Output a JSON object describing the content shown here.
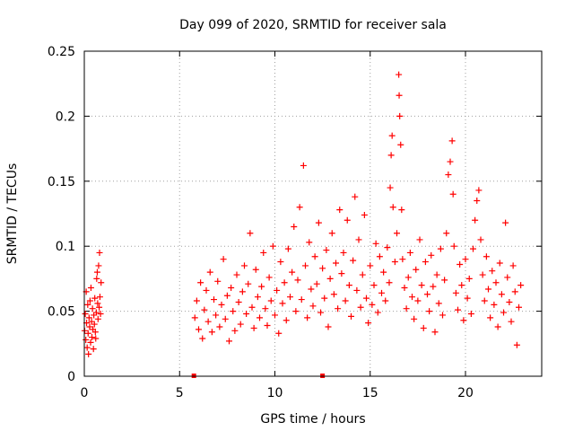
{
  "chart_data": {
    "type": "scatter",
    "title": "Day 099 of 2020, SRMTID for receiver sala",
    "xlabel": "GPS time / hours",
    "ylabel": "SRMTID / TECUs",
    "xlim": [
      0,
      24
    ],
    "ylim": [
      0,
      0.25
    ],
    "xticks": [
      0,
      5,
      10,
      15,
      20
    ],
    "xtick_labels": [
      "0",
      "5",
      "10",
      "15",
      "20"
    ],
    "yticks": [
      0,
      0.05,
      0.1,
      0.15,
      0.2,
      0.25
    ],
    "ytick_labels": [
      "0",
      "0.05",
      "0.1",
      "0.15",
      "0.2",
      "0.25"
    ],
    "grid": true,
    "marker": "plus",
    "color": "#ff0000",
    "series": [
      {
        "name": "SRMTID",
        "points": [
          [
            0.02,
            0.035
          ],
          [
            0.05,
            0.048
          ],
          [
            0.08,
            0.028
          ],
          [
            0.1,
            0.065
          ],
          [
            0.12,
            0.041
          ],
          [
            0.15,
            0.022
          ],
          [
            0.18,
            0.055
          ],
          [
            0.2,
            0.033
          ],
          [
            0.22,
            0.017
          ],
          [
            0.25,
            0.045
          ],
          [
            0.28,
            0.038
          ],
          [
            0.3,
            0.058
          ],
          [
            0.33,
            0.026
          ],
          [
            0.35,
            0.068
          ],
          [
            0.38,
            0.042
          ],
          [
            0.4,
            0.03
          ],
          [
            0.43,
            0.052
          ],
          [
            0.45,
            0.036
          ],
          [
            0.48,
            0.021
          ],
          [
            0.5,
            0.047
          ],
          [
            0.53,
            0.04
          ],
          [
            0.55,
            0.06
          ],
          [
            0.58,
            0.034
          ],
          [
            0.6,
            0.029
          ],
          [
            0.63,
            0.049
          ],
          [
            0.65,
            0.075
          ],
          [
            0.68,
            0.08
          ],
          [
            0.7,
            0.056
          ],
          [
            0.72,
            0.044
          ],
          [
            0.75,
            0.085
          ],
          [
            0.78,
            0.053
          ],
          [
            0.8,
            0.095
          ],
          [
            0.82,
            0.061
          ],
          [
            0.85,
            0.048
          ],
          [
            0.88,
            0.072
          ],
          [
            5.8,
            0.045
          ],
          [
            5.9,
            0.058
          ],
          [
            6.0,
            0.036
          ],
          [
            6.1,
            0.072
          ],
          [
            6.2,
            0.029
          ],
          [
            6.3,
            0.051
          ],
          [
            6.4,
            0.066
          ],
          [
            6.5,
            0.042
          ],
          [
            6.6,
            0.08
          ],
          [
            6.7,
            0.034
          ],
          [
            6.8,
            0.059
          ],
          [
            6.9,
            0.047
          ],
          [
            7.0,
            0.073
          ],
          [
            7.1,
            0.038
          ],
          [
            7.2,
            0.055
          ],
          [
            7.3,
            0.09
          ],
          [
            7.4,
            0.044
          ],
          [
            7.5,
            0.062
          ],
          [
            7.6,
            0.027
          ],
          [
            7.7,
            0.068
          ],
          [
            7.8,
            0.05
          ],
          [
            7.9,
            0.035
          ],
          [
            8.0,
            0.078
          ],
          [
            8.1,
            0.057
          ],
          [
            8.2,
            0.04
          ],
          [
            8.3,
            0.065
          ],
          [
            8.4,
            0.085
          ],
          [
            8.5,
            0.048
          ],
          [
            8.6,
            0.071
          ],
          [
            8.7,
            0.11
          ],
          [
            8.8,
            0.053
          ],
          [
            8.9,
            0.037
          ],
          [
            9.0,
            0.082
          ],
          [
            9.1,
            0.061
          ],
          [
            9.2,
            0.045
          ],
          [
            9.3,
            0.069
          ],
          [
            9.4,
            0.095
          ],
          [
            9.5,
            0.052
          ],
          [
            9.6,
            0.039
          ],
          [
            9.7,
            0.076
          ],
          [
            9.8,
            0.058
          ],
          [
            9.9,
            0.1
          ],
          [
            10.0,
            0.047
          ],
          [
            10.1,
            0.066
          ],
          [
            10.2,
            0.033
          ],
          [
            10.3,
            0.088
          ],
          [
            10.4,
            0.056
          ],
          [
            10.5,
            0.072
          ],
          [
            10.6,
            0.043
          ],
          [
            10.7,
            0.098
          ],
          [
            10.8,
            0.061
          ],
          [
            10.9,
            0.08
          ],
          [
            11.0,
            0.115
          ],
          [
            11.1,
            0.05
          ],
          [
            11.2,
            0.074
          ],
          [
            11.3,
            0.13
          ],
          [
            11.4,
            0.059
          ],
          [
            11.5,
            0.162
          ],
          [
            11.6,
            0.085
          ],
          [
            11.7,
            0.045
          ],
          [
            11.8,
            0.103
          ],
          [
            11.9,
            0.067
          ],
          [
            12.0,
            0.054
          ],
          [
            12.1,
            0.092
          ],
          [
            12.2,
            0.071
          ],
          [
            12.3,
            0.118
          ],
          [
            12.4,
            0.049
          ],
          [
            12.5,
            0.083
          ],
          [
            12.6,
            0.06
          ],
          [
            12.7,
            0.097
          ],
          [
            12.8,
            0.038
          ],
          [
            12.9,
            0.075
          ],
          [
            13.0,
            0.11
          ],
          [
            13.1,
            0.063
          ],
          [
            13.2,
            0.087
          ],
          [
            13.3,
            0.052
          ],
          [
            13.4,
            0.128
          ],
          [
            13.5,
            0.079
          ],
          [
            13.6,
            0.095
          ],
          [
            13.7,
            0.058
          ],
          [
            13.8,
            0.12
          ],
          [
            13.9,
            0.07
          ],
          [
            14.0,
            0.046
          ],
          [
            14.1,
            0.089
          ],
          [
            14.2,
            0.138
          ],
          [
            14.3,
            0.066
          ],
          [
            14.4,
            0.105
          ],
          [
            14.5,
            0.053
          ],
          [
            14.6,
            0.078
          ],
          [
            14.7,
            0.124
          ],
          [
            14.8,
            0.06
          ],
          [
            14.9,
            0.041
          ],
          [
            15.0,
            0.085
          ],
          [
            15.1,
            0.055
          ],
          [
            15.2,
            0.07
          ],
          [
            15.3,
            0.102
          ],
          [
            15.4,
            0.049
          ],
          [
            15.5,
            0.092
          ],
          [
            15.6,
            0.064
          ],
          [
            15.7,
            0.08
          ],
          [
            15.8,
            0.058
          ],
          [
            15.9,
            0.099
          ],
          [
            16.0,
            0.072
          ],
          [
            16.05,
            0.145
          ],
          [
            16.1,
            0.17
          ],
          [
            16.15,
            0.185
          ],
          [
            16.2,
            0.13
          ],
          [
            16.3,
            0.088
          ],
          [
            16.4,
            0.11
          ],
          [
            16.5,
            0.232
          ],
          [
            16.52,
            0.216
          ],
          [
            16.55,
            0.2
          ],
          [
            16.6,
            0.178
          ],
          [
            16.65,
            0.128
          ],
          [
            16.7,
            0.09
          ],
          [
            16.8,
            0.068
          ],
          [
            16.9,
            0.052
          ],
          [
            17.0,
            0.076
          ],
          [
            17.1,
            0.095
          ],
          [
            17.2,
            0.061
          ],
          [
            17.3,
            0.044
          ],
          [
            17.4,
            0.082
          ],
          [
            17.5,
            0.058
          ],
          [
            17.6,
            0.105
          ],
          [
            17.7,
            0.07
          ],
          [
            17.8,
            0.037
          ],
          [
            17.9,
            0.088
          ],
          [
            18.0,
            0.063
          ],
          [
            18.1,
            0.05
          ],
          [
            18.2,
            0.093
          ],
          [
            18.3,
            0.069
          ],
          [
            18.4,
            0.034
          ],
          [
            18.5,
            0.078
          ],
          [
            18.6,
            0.056
          ],
          [
            18.7,
            0.098
          ],
          [
            18.8,
            0.047
          ],
          [
            18.9,
            0.074
          ],
          [
            19.0,
            0.11
          ],
          [
            19.1,
            0.155
          ],
          [
            19.2,
            0.165
          ],
          [
            19.3,
            0.181
          ],
          [
            19.35,
            0.14
          ],
          [
            19.4,
            0.1
          ],
          [
            19.5,
            0.064
          ],
          [
            19.6,
            0.051
          ],
          [
            19.7,
            0.086
          ],
          [
            19.8,
            0.07
          ],
          [
            19.9,
            0.043
          ],
          [
            20.0,
            0.09
          ],
          [
            20.1,
            0.06
          ],
          [
            20.2,
            0.075
          ],
          [
            20.3,
            0.048
          ],
          [
            20.4,
            0.098
          ],
          [
            20.5,
            0.12
          ],
          [
            20.6,
            0.135
          ],
          [
            20.7,
            0.143
          ],
          [
            20.8,
            0.105
          ],
          [
            20.9,
            0.078
          ],
          [
            21.0,
            0.058
          ],
          [
            21.1,
            0.092
          ],
          [
            21.2,
            0.067
          ],
          [
            21.3,
            0.045
          ],
          [
            21.4,
            0.081
          ],
          [
            21.5,
            0.055
          ],
          [
            21.6,
            0.072
          ],
          [
            21.7,
            0.038
          ],
          [
            21.8,
            0.087
          ],
          [
            21.9,
            0.063
          ],
          [
            22.0,
            0.049
          ],
          [
            22.1,
            0.118
          ],
          [
            22.2,
            0.076
          ],
          [
            22.3,
            0.057
          ],
          [
            22.4,
            0.042
          ],
          [
            22.5,
            0.085
          ],
          [
            22.6,
            0.065
          ],
          [
            22.7,
            0.024
          ],
          [
            22.8,
            0.053
          ],
          [
            22.9,
            0.07
          ]
        ]
      }
    ],
    "axis_marks_at_zero": [
      5.75,
      12.5
    ]
  }
}
